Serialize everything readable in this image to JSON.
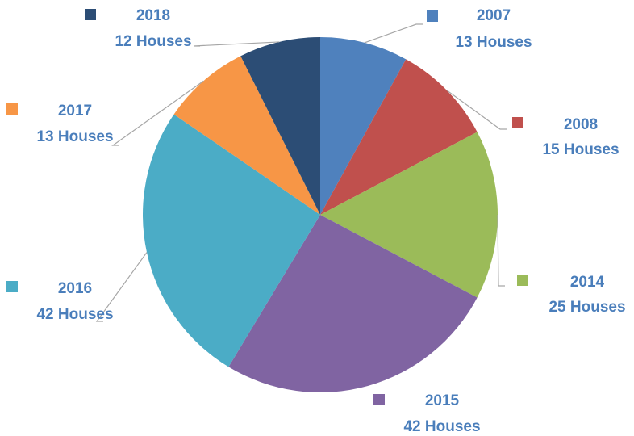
{
  "chart_data": {
    "type": "pie",
    "categories": [
      "2007",
      "2008",
      "2014",
      "2015",
      "2016",
      "2017",
      "2018"
    ],
    "values": [
      13,
      15,
      25,
      42,
      42,
      13,
      12
    ],
    "value_labels": [
      "13 Houses",
      "15 Houses",
      "25 Houses",
      "42 Houses",
      "42 Houses",
      "13 Houses",
      "12 Houses"
    ],
    "colors": [
      "#4f81bd",
      "#c0504d",
      "#9bbb59",
      "#8064a2",
      "#4bacc6",
      "#f79646",
      "#2c4d75"
    ]
  }
}
